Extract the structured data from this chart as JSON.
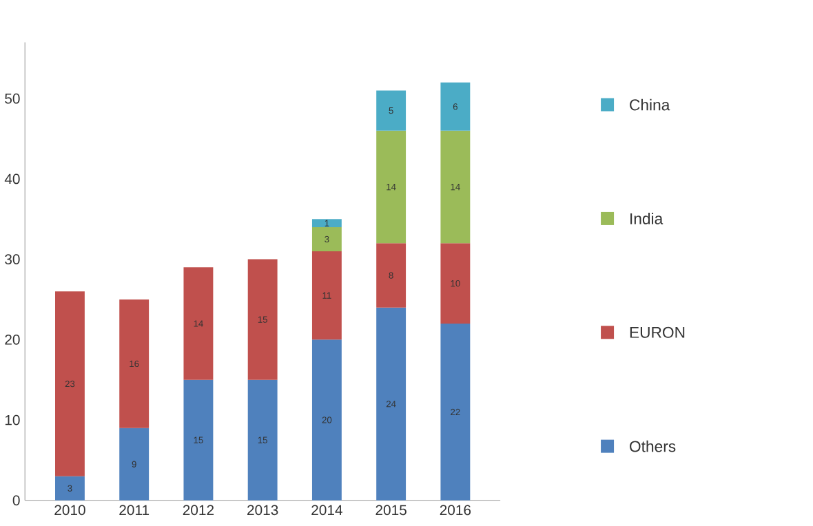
{
  "chart_data": {
    "type": "bar",
    "stacked": true,
    "categories": [
      "2010",
      "2011",
      "2012",
      "2013",
      "2014",
      "2015",
      "2016"
    ],
    "series": [
      {
        "name": "Others",
        "color": "#4f81bd",
        "values": [
          3,
          9,
          15,
          15,
          20,
          24,
          22
        ]
      },
      {
        "name": "EURON",
        "color": "#c0504d",
        "values": [
          23,
          16,
          14,
          15,
          11,
          8,
          10
        ]
      },
      {
        "name": "India",
        "color": "#9bbb59",
        "values": [
          null,
          null,
          null,
          null,
          3,
          14,
          14
        ]
      },
      {
        "name": "China",
        "color": "#4bacc6",
        "values": [
          null,
          null,
          null,
          null,
          1,
          5,
          6
        ]
      }
    ],
    "ylim": [
      0,
      57
    ],
    "yticks": [
      0,
      10,
      20,
      30,
      40,
      50
    ],
    "data_labels": true,
    "legend": "right",
    "grid": false
  }
}
